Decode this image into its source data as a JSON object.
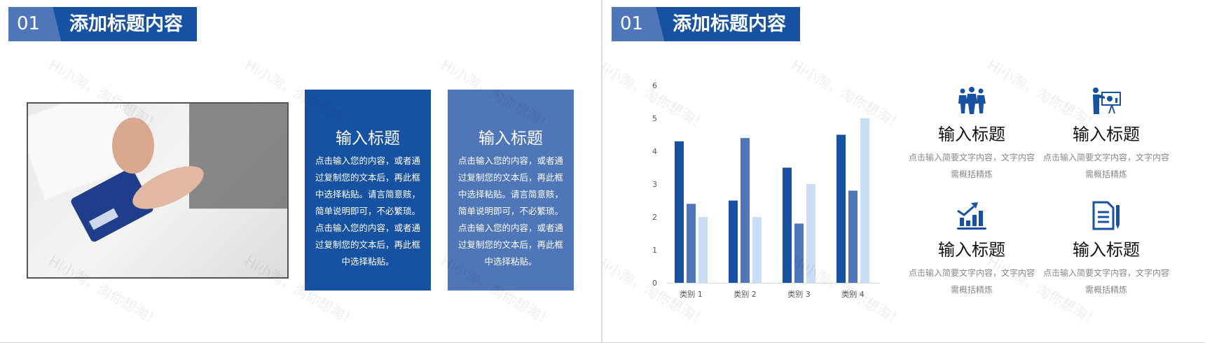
{
  "watermark": "Hi小淘，淘你想淘！",
  "colors": {
    "dark_blue": "#1752a2",
    "mid_blue": "#4f76b8",
    "light_blue": "#c9ddf5"
  },
  "slide1": {
    "header": {
      "number": "01",
      "title": "添加标题内容"
    },
    "photo": {
      "icon": "calculator-photo"
    },
    "cards": [
      {
        "title": "输入标题",
        "body": "点击输入您的内容，或者通过复制您的文本后，再此框中选择粘贴。请言简意赅，简单说明即可，不必繁琐。点击输入您的内容，或者通过复制您的文本后，再此框中选择粘贴。",
        "color": "#1752a2"
      },
      {
        "title": "输入标题",
        "body": "点击输入您的内容，或者通过复制您的文本后，再此框中选择粘贴。请言简意赅，简单说明即可，不必繁琐。点击输入您的内容，或者通过复制您的文本后，再此框中选择粘贴。",
        "color": "#4f76b8"
      }
    ]
  },
  "slide2": {
    "header": {
      "number": "01",
      "title": "添加标题内容"
    },
    "features": [
      {
        "icon": "team-icon",
        "title": "输入标题",
        "desc": "点击输入简要文字内容，文字内容需概括精炼"
      },
      {
        "icon": "presentation-icon",
        "title": "输入标题",
        "desc": "点击输入简要文字内容，文字内容需概括精炼"
      },
      {
        "icon": "growth-chart-icon",
        "title": "输入标题",
        "desc": "点击输入简要文字内容，文字内容需概括精炼"
      },
      {
        "icon": "document-pen-icon",
        "title": "输入标题",
        "desc": "点击输入简要文字内容，文字内容需概括精炼"
      }
    ]
  },
  "chart_data": {
    "type": "bar",
    "categories": [
      "类别 1",
      "类别 2",
      "类别 3",
      "类别 4"
    ],
    "series": [
      {
        "values": [
          4.3,
          2.5,
          3.5,
          4.5
        ],
        "color": "#1752a2"
      },
      {
        "values": [
          2.4,
          4.4,
          1.8,
          2.8
        ],
        "color": "#4f76b8"
      },
      {
        "values": [
          2.0,
          2.0,
          3.0,
          5.0
        ],
        "color": "#c9ddf5"
      }
    ],
    "ylim": [
      0,
      6
    ],
    "yticks": [
      "0",
      "1",
      "2",
      "3",
      "4",
      "5",
      "6"
    ],
    "grid": false,
    "legend": "none"
  }
}
